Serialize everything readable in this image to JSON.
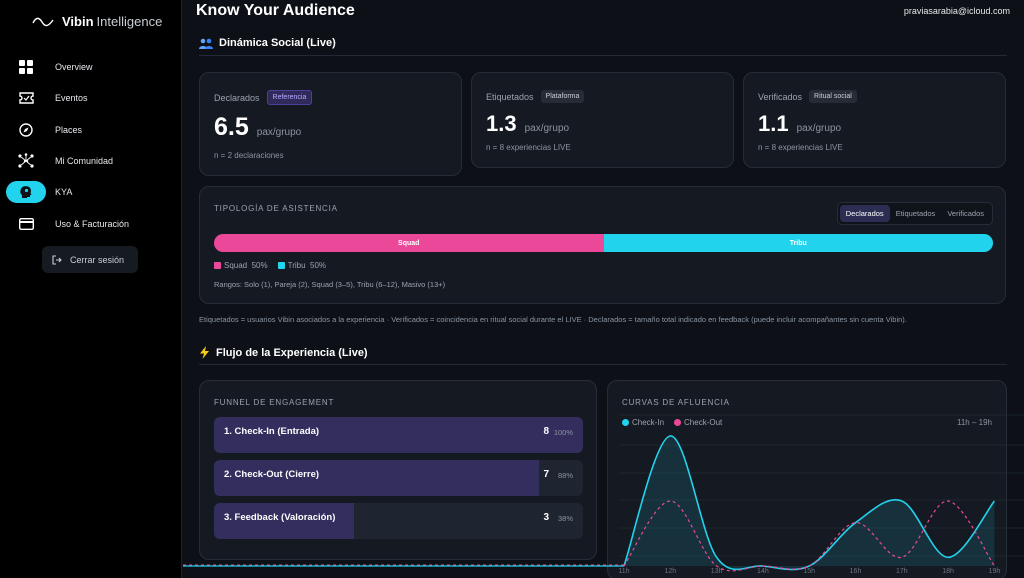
{
  "brand": {
    "name_bold": "Vibin",
    "name_rest": "Intelligence"
  },
  "sidebar": {
    "items": [
      {
        "label": "Overview",
        "icon": "grid-icon"
      },
      {
        "label": "Eventos",
        "icon": "ticket-icon"
      },
      {
        "label": "Places",
        "icon": "compass-icon"
      },
      {
        "label": "Mi Comunidad",
        "icon": "network-icon"
      },
      {
        "label": "KYA",
        "icon": "head-icon",
        "active": true
      },
      {
        "label": "Uso & Facturación",
        "icon": "card-icon"
      }
    ],
    "logout_label": "Cerrar sesión"
  },
  "header": {
    "title": "Know Your Audience",
    "user_email": "praviasarabia@icloud.com"
  },
  "social": {
    "section_title": "Dinámica Social (Live)",
    "metrics": [
      {
        "label": "Declarados",
        "badge": "Referencia",
        "value": "6.5",
        "unit": "pax/grupo",
        "note": "n = 2 declaraciones"
      },
      {
        "label": "Etiquetados",
        "badge": "Plataforma",
        "value": "1.3",
        "unit": "pax/grupo",
        "note": "n = 8 experiencias LIVE"
      },
      {
        "label": "Verificados",
        "badge": "Ritual social",
        "value": "1.1",
        "unit": "pax/grupo",
        "note": "n = 8 experiencias LIVE"
      }
    ],
    "typology": {
      "title": "TIPOLOGÍA DE ASISTENCIA",
      "tabs": [
        "Declarados",
        "Etiquetados",
        "Verificados"
      ],
      "active_tab": "Declarados",
      "segments": [
        {
          "name": "Squad",
          "percent": 50,
          "pct_label": "50%",
          "color": "#ec4899"
        },
        {
          "name": "Tribu",
          "percent": 50,
          "pct_label": "50%",
          "color": "#22d3ee"
        }
      ],
      "ranges": "Rangos: Solo (1), Pareja (2), Squad (3–5), Tribu (6–12), Masivo (13+)"
    },
    "footnote": "Etiquetados = usuarios Vibin asociados a la experiencia · Verificados = coincidencia en ritual social durante el LIVE · Declarados = tamaño total indicado en feedback (puede incluir acompañantes sin cuenta Vibin)."
  },
  "flow": {
    "section_title": "Flujo de la Experiencia (Live)",
    "funnel": {
      "title": "FUNNEL DE ENGAGEMENT",
      "rows": [
        {
          "label": "1. Check-In (Entrada)",
          "count": "8",
          "pct_label": "100%",
          "fraction": 1.0
        },
        {
          "label": "2. Check-Out (Cierre)",
          "count": "7",
          "pct_label": "88%",
          "fraction": 0.88
        },
        {
          "label": "3. Feedback (Valoración)",
          "count": "3",
          "pct_label": "38%",
          "fraction": 0.38
        }
      ]
    },
    "curves": {
      "title": "CURVAS DE AFLUENCIA",
      "range_label": "11h – 19h",
      "legend": [
        {
          "name": "Check-In",
          "color": "#22d3ee"
        },
        {
          "name": "Check-Out",
          "color": "#ec4899"
        }
      ]
    }
  },
  "chart_data": {
    "type": "area",
    "x": [
      "11h",
      "12h",
      "13h",
      "14h",
      "15h",
      "16h",
      "17h",
      "18h",
      "19h"
    ],
    "series": [
      {
        "name": "Check-In",
        "values": [
          0,
          3,
          0.2,
          0,
          0,
          1,
          1.5,
          0.2,
          1.5
        ]
      },
      {
        "name": "Check-Out",
        "values": [
          0,
          1.5,
          0,
          0,
          0,
          1,
          0.2,
          1.5,
          0
        ]
      }
    ],
    "xlabel": "",
    "ylabel": "",
    "grid": true,
    "legend": "top-left"
  }
}
